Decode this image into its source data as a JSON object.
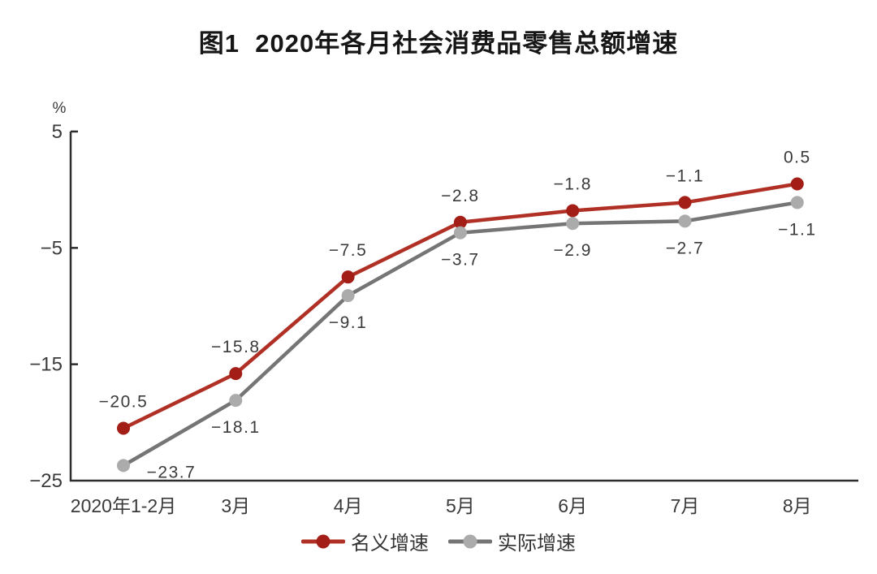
{
  "title": "图1  2020年各月社会消费品零售总额增速",
  "chart_data": {
    "type": "line",
    "title": "图1 2020年各月社会消费品零售总额增速",
    "categories": [
      "2020年1-2月",
      "3月",
      "4月",
      "5月",
      "6月",
      "7月",
      "8月"
    ],
    "series": [
      {
        "key": "nominal-growth",
        "name": "名义增速",
        "values": [
          -20.5,
          -15.8,
          -7.5,
          -2.8,
          -1.8,
          -1.1,
          0.5
        ],
        "line_color": "#b03026",
        "marker_color": "#a21e16",
        "label_position": "above"
      },
      {
        "key": "real-growth",
        "name": "实际增速",
        "values": [
          -23.7,
          -18.1,
          -9.1,
          -3.7,
          -2.9,
          -2.7,
          -1.1
        ],
        "line_color": "#757575",
        "marker_color": "#ababab",
        "label_position": "below",
        "label_offset_overrides": {
          "0": {
            "dx": 59,
            "dy": 15
          }
        }
      }
    ],
    "xlabel": "",
    "ylabel": "%",
    "ylim": [
      -25,
      5
    ],
    "yticks": [
      5,
      -5,
      -15,
      -25
    ],
    "grid": false,
    "legend_position": "bottom",
    "axis_color": "#2d2d2d",
    "text_color": "#3a3a3a"
  }
}
